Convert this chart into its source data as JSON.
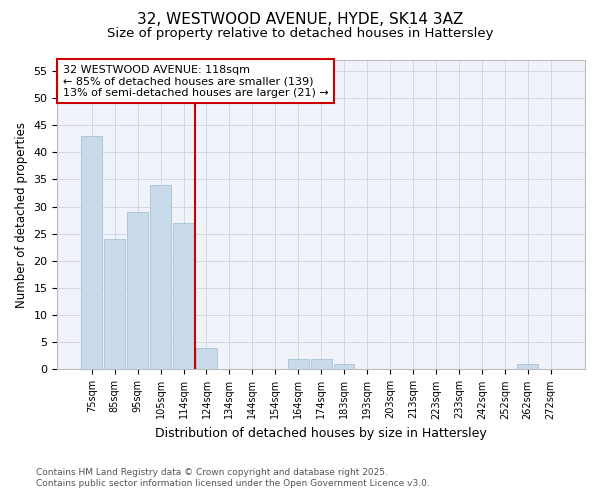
{
  "title1": "32, WESTWOOD AVENUE, HYDE, SK14 3AZ",
  "title2": "Size of property relative to detached houses in Hattersley",
  "xlabel": "Distribution of detached houses by size in Hattersley",
  "ylabel": "Number of detached properties",
  "bar_color": "#c9daea",
  "bar_edgecolor": "#a8c0d6",
  "vline_color": "#cc0000",
  "annotation_title": "32 WESTWOOD AVENUE: 118sqm",
  "annotation_line2": "← 85% of detached houses are smaller (139)",
  "annotation_line3": "13% of semi-detached houses are larger (21) →",
  "footer1": "Contains HM Land Registry data © Crown copyright and database right 2025.",
  "footer2": "Contains public sector information licensed under the Open Government Licence v3.0.",
  "categories": [
    "75sqm",
    "85sqm",
    "95sqm",
    "105sqm",
    "114sqm",
    "124sqm",
    "134sqm",
    "144sqm",
    "154sqm",
    "164sqm",
    "174sqm",
    "183sqm",
    "193sqm",
    "203sqm",
    "213sqm",
    "223sqm",
    "233sqm",
    "242sqm",
    "252sqm",
    "262sqm",
    "272sqm"
  ],
  "values": [
    43,
    24,
    29,
    34,
    27,
    4,
    0,
    0,
    0,
    2,
    2,
    1,
    0,
    0,
    0,
    0,
    0,
    0,
    0,
    1,
    0
  ],
  "ylim": [
    0,
    57
  ],
  "yticks": [
    0,
    5,
    10,
    15,
    20,
    25,
    30,
    35,
    40,
    45,
    50,
    55
  ],
  "grid_color": "#d0d8e8",
  "bg_color": "#ffffff",
  "plot_bg_color": "#f0f4fa"
}
